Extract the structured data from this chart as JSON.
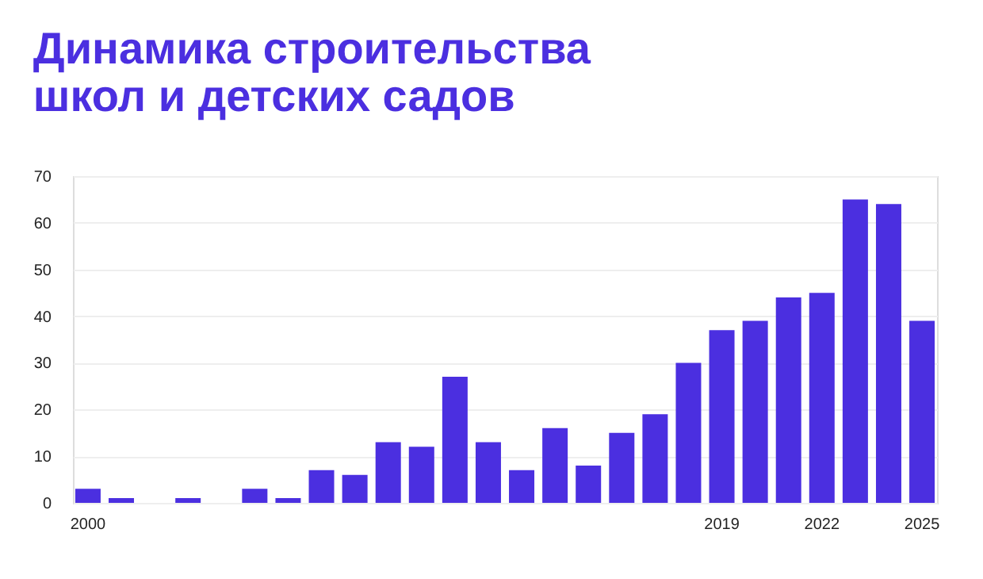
{
  "chart_data": {
    "type": "bar",
    "title": [
      "Динамика строительства",
      "школ и детских садов"
    ],
    "categories": [
      "2000",
      null,
      null,
      null,
      null,
      null,
      null,
      null,
      null,
      null,
      null,
      null,
      null,
      null,
      null,
      null,
      null,
      null,
      null,
      "2019",
      null,
      null,
      "2022",
      null,
      null,
      "2025"
    ],
    "values": [
      3,
      1,
      0,
      1,
      0,
      3,
      1,
      7,
      6,
      13,
      12,
      27,
      13,
      7,
      16,
      8,
      15,
      19,
      30,
      37,
      39,
      44,
      45,
      65,
      64,
      39
    ],
    "color": "#4b2fe0",
    "ylim": [
      0,
      70
    ],
    "yticks": [
      0,
      10,
      20,
      30,
      40,
      50,
      60,
      70
    ],
    "grid": "y"
  }
}
